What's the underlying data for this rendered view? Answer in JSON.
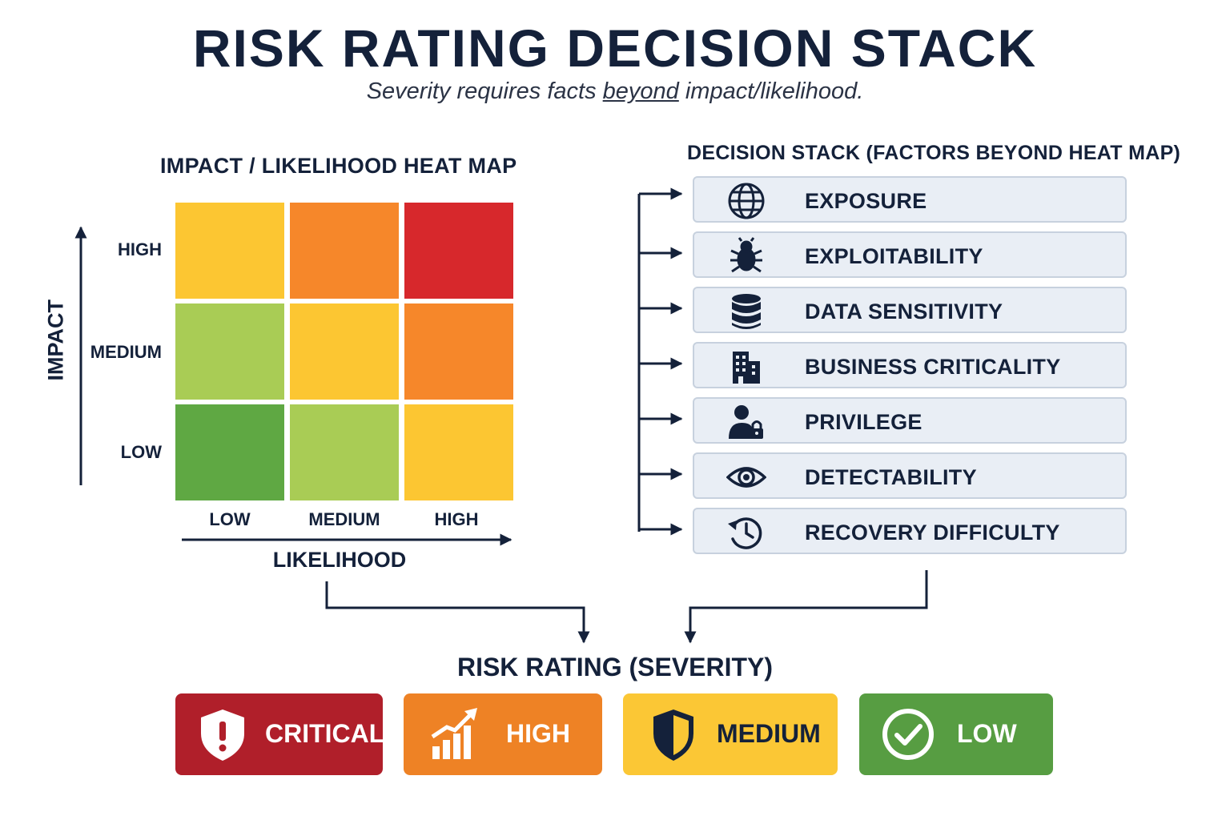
{
  "header": {
    "title": "RISK RATING DECISION STACK",
    "subtitle_before": "Severity requires facts ",
    "subtitle_emphasis": "beyond",
    "subtitle_after": " impact/likelihood."
  },
  "heat_map": {
    "title": "IMPACT / LIKELIHOOD HEAT MAP",
    "y_axis_label": "IMPACT",
    "x_axis_label": "LIKELIHOOD",
    "impact_levels": [
      "HIGH",
      "MEDIUM",
      "LOW"
    ],
    "likelihood_levels": [
      "LOW",
      "MEDIUM",
      "HIGH"
    ],
    "cell_colors": [
      [
        "#fcc632",
        "#f6872a",
        "#d7282c"
      ],
      [
        "#a9cc55",
        "#fcc632",
        "#f6872a"
      ],
      [
        "#5fa843",
        "#a9cc55",
        "#fcc632"
      ]
    ]
  },
  "decision_stack": {
    "title": "DECISION STACK (FACTORS BEYOND HEAT MAP)",
    "factors": [
      {
        "label": "EXPOSURE",
        "icon": "globe-icon"
      },
      {
        "label": "EXPLOITABILITY",
        "icon": "bug-icon"
      },
      {
        "label": "DATA SENSITIVITY",
        "icon": "database-icon"
      },
      {
        "label": "BUSINESS CRITICALITY",
        "icon": "building-icon"
      },
      {
        "label": "PRIVILEGE",
        "icon": "user-lock-icon"
      },
      {
        "label": "DETECTABILITY",
        "icon": "eye-icon"
      },
      {
        "label": "RECOVERY DIFFICULTY",
        "icon": "history-icon"
      }
    ]
  },
  "risk_rating": {
    "title": "RISK RATING (SEVERITY)",
    "levels": [
      {
        "label": "CRITICAL",
        "color": "#b01f2a",
        "text_color": "#ffffff",
        "icon": "shield-alert-icon"
      },
      {
        "label": "HIGH",
        "color": "#ee8225",
        "text_color": "#ffffff",
        "icon": "trend-chart-icon"
      },
      {
        "label": "MEDIUM",
        "color": "#fbc735",
        "text_color": "#14213a",
        "icon": "shield-half-icon"
      },
      {
        "label": "LOW",
        "color": "#579d42",
        "text_color": "#ffffff",
        "icon": "check-circle-icon"
      }
    ]
  },
  "colors": {
    "navy": "#14213a",
    "factor_bg": "#e9eef5",
    "factor_border": "#c7d1de"
  }
}
